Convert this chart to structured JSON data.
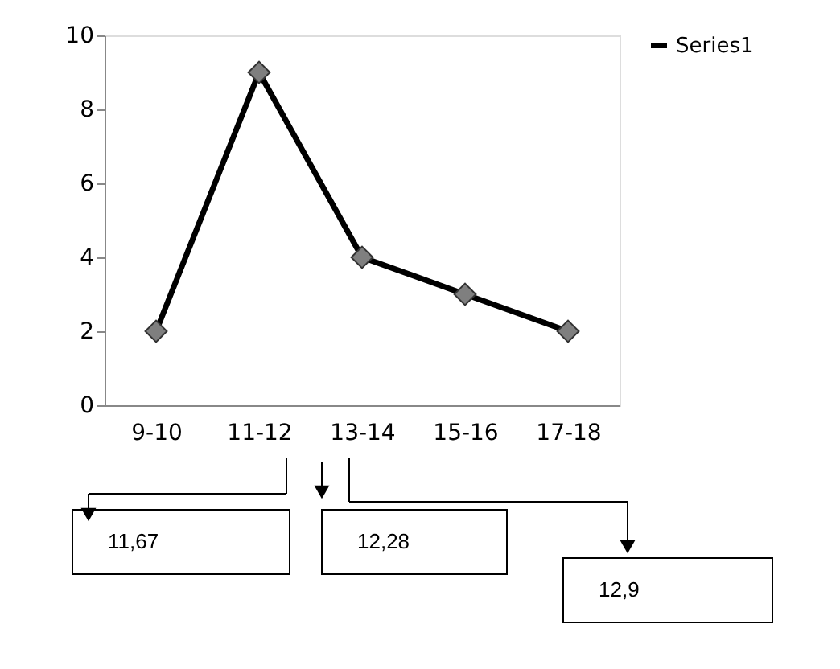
{
  "chart_data": {
    "type": "line",
    "categories": [
      "9-10",
      "11-12",
      "13-14",
      "15-16",
      "17-18"
    ],
    "series": [
      {
        "name": "Series1",
        "color": "#000000",
        "values": [
          2,
          9,
          4,
          3,
          2
        ]
      }
    ],
    "ylim": [
      0,
      10
    ],
    "yticks": [
      0,
      2,
      4,
      6,
      8,
      10
    ],
    "grid": false,
    "legend": "right",
    "marker": "diamond",
    "line_style": "solid",
    "annotations": [
      "11,67",
      "12,28",
      "12,9"
    ]
  }
}
